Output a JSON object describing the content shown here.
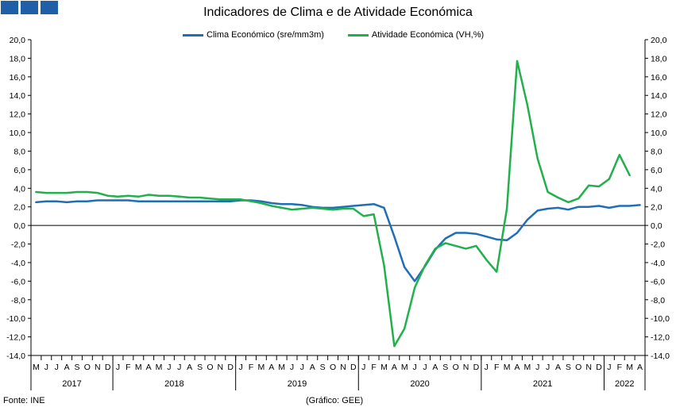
{
  "header": {
    "logo_squares": 3,
    "logo_color": "#1f5fa8"
  },
  "footer": {
    "source": "Fonte: INE",
    "credit": "(Gráfico: GEE)"
  },
  "chart_data": {
    "type": "line",
    "title": "Indicadores de Clima e de Atividade Económica",
    "ylim": [
      -14,
      20
    ],
    "yticks": [
      "20,0",
      "18,0",
      "16,0",
      "14,0",
      "12,0",
      "10,0",
      "8,0",
      "6,0",
      "4,0",
      "2,0",
      "0,0",
      "-2,0",
      "-4,0",
      "-6,0",
      "-8,0",
      "-10,0",
      "-12,0",
      "-14,0"
    ],
    "month_labels": [
      "M",
      "J",
      "J",
      "A",
      "S",
      "O",
      "N",
      "D",
      "J",
      "F",
      "M",
      "A",
      "M",
      "J",
      "J",
      "A",
      "S",
      "O",
      "N",
      "D",
      "J",
      "F",
      "M",
      "A",
      "M",
      "J",
      "J",
      "A",
      "S",
      "O",
      "N",
      "D",
      "J",
      "F",
      "M",
      "A",
      "M",
      "J",
      "J",
      "A",
      "S",
      "O",
      "N",
      "D",
      "J",
      "F",
      "M",
      "A",
      "M",
      "J",
      "J",
      "A",
      "S",
      "O",
      "N",
      "D",
      "J",
      "F",
      "M",
      "A"
    ],
    "year_labels": [
      {
        "label": "2017",
        "start": 0,
        "end": 7
      },
      {
        "label": "2018",
        "start": 8,
        "end": 19
      },
      {
        "label": "2019",
        "start": 20,
        "end": 31
      },
      {
        "label": "2020",
        "start": 32,
        "end": 43
      },
      {
        "label": "2021",
        "start": 44,
        "end": 55
      },
      {
        "label": "2022",
        "start": 56,
        "end": 59
      }
    ],
    "grid": false,
    "legend_position": "top",
    "series": [
      {
        "name": "Clima Económico (sre/mm3m)",
        "color": "#1f6fb8",
        "values": [
          2.5,
          2.6,
          2.6,
          2.5,
          2.6,
          2.6,
          2.7,
          2.7,
          2.7,
          2.7,
          2.6,
          2.6,
          2.6,
          2.6,
          2.6,
          2.6,
          2.6,
          2.6,
          2.6,
          2.6,
          2.7,
          2.7,
          2.6,
          2.4,
          2.3,
          2.3,
          2.2,
          2.0,
          1.9,
          1.9,
          2.0,
          2.1,
          2.2,
          2.3,
          1.9,
          -1.2,
          -4.5,
          -6.0,
          -4.4,
          -2.6,
          -1.4,
          -0.8,
          -0.8,
          -0.9,
          -1.2,
          -1.5,
          -1.6,
          -0.8,
          0.6,
          1.6,
          1.8,
          1.9,
          1.7,
          2.0,
          2.0,
          2.1,
          1.9,
          2.1,
          2.1,
          2.2
        ]
      },
      {
        "name": "Atividade Económica (VH,%)",
        "color": "#21b04b",
        "values": [
          3.6,
          3.5,
          3.5,
          3.5,
          3.6,
          3.6,
          3.5,
          3.2,
          3.1,
          3.2,
          3.1,
          3.3,
          3.2,
          3.2,
          3.1,
          3.0,
          3.0,
          2.9,
          2.8,
          2.8,
          2.8,
          2.6,
          2.4,
          2.1,
          1.9,
          1.7,
          1.8,
          1.9,
          1.8,
          1.7,
          1.8,
          1.8,
          1.0,
          1.2,
          -4.3,
          -13.0,
          -11.1,
          -6.7,
          -4.3,
          -2.5,
          -1.9,
          -2.2,
          -2.5,
          -2.2,
          -3.7,
          -5.0,
          1.8,
          17.7,
          13.0,
          7.2,
          3.6,
          3.0,
          2.5,
          2.9,
          4.3,
          4.2,
          5.0,
          7.6,
          5.4
        ]
      }
    ]
  }
}
